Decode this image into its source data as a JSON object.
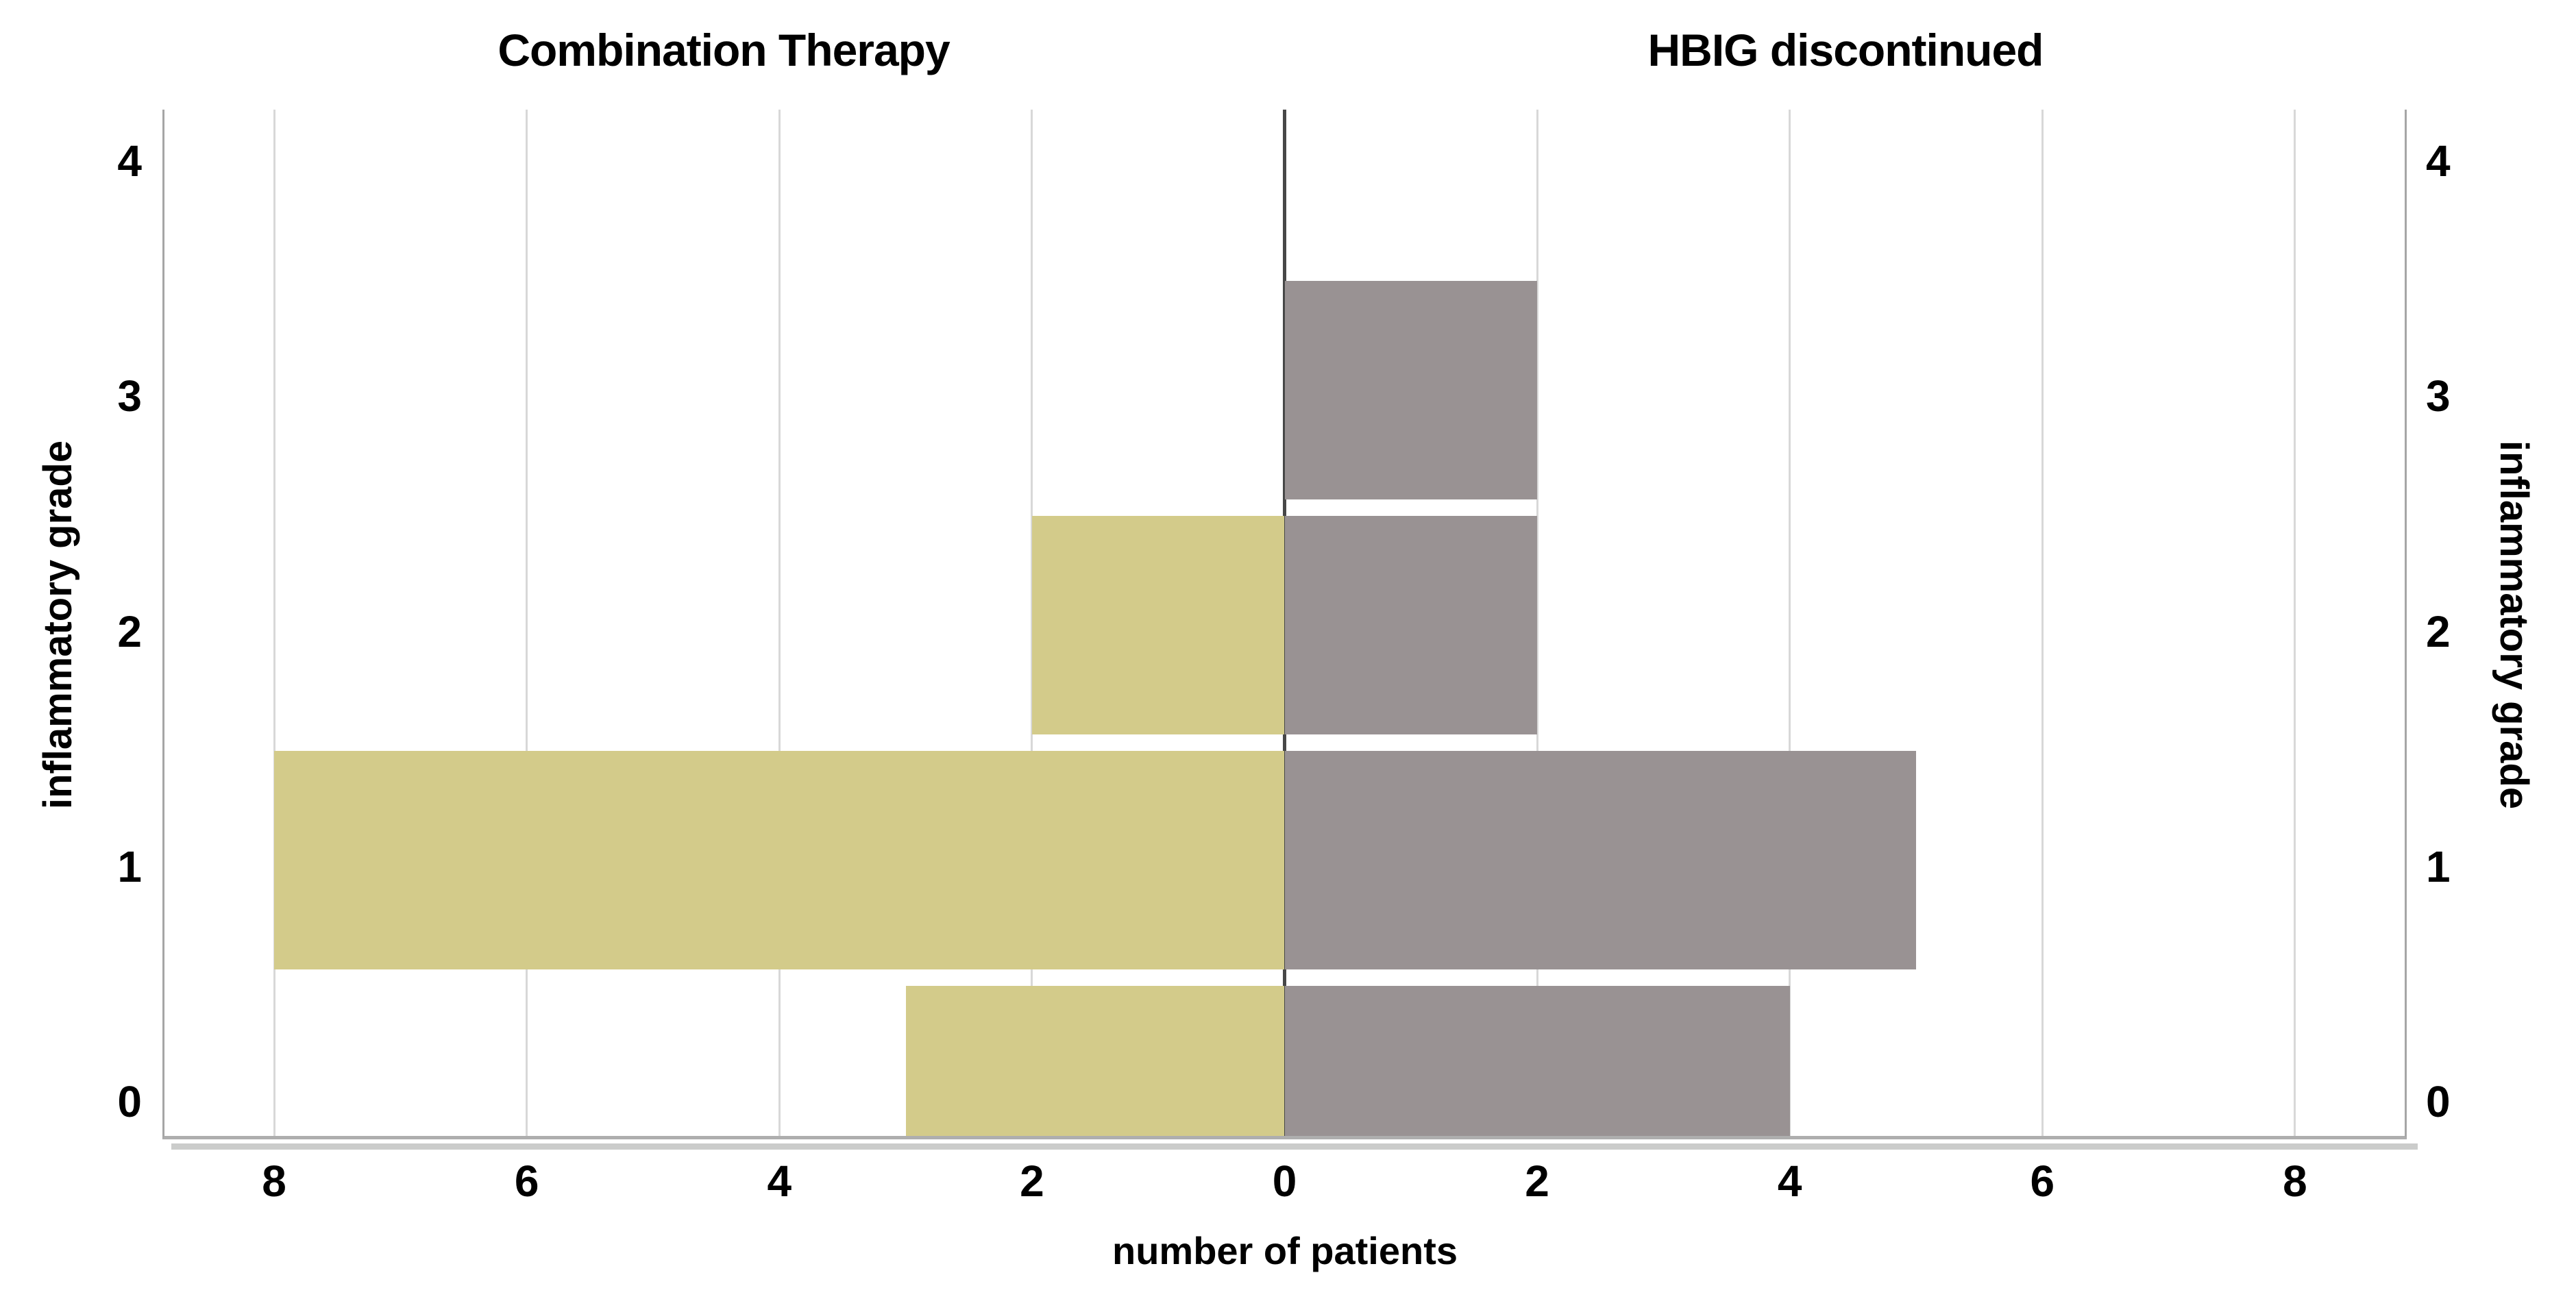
{
  "chart_data": {
    "type": "bar",
    "subtype": "population-pyramid",
    "categories": [
      0,
      1,
      2,
      3,
      4
    ],
    "category_axis_label": "inflammatory grade",
    "value_axis_label": "number of patients",
    "panels": [
      {
        "title": "Combination Therapy",
        "side": "left",
        "color": "#d3cb8a",
        "values": [
          3,
          8,
          2,
          0,
          0
        ]
      },
      {
        "title": "HBIG discontinued",
        "side": "right",
        "color": "#999293",
        "values": [
          4,
          5,
          2,
          2,
          0
        ]
      }
    ],
    "x_ticks": [
      {
        "label": "8",
        "value": -8
      },
      {
        "label": "6",
        "value": -6
      },
      {
        "label": "4",
        "value": -4
      },
      {
        "label": "2",
        "value": -2
      },
      {
        "label": "0",
        "value": 0
      },
      {
        "label": "2",
        "value": 2
      },
      {
        "label": "4",
        "value": 4
      },
      {
        "label": "6",
        "value": 6
      },
      {
        "label": "8",
        "value": 8
      }
    ],
    "y_ticks": [
      "4",
      "3",
      "2",
      "1",
      "0"
    ],
    "gridline_values": [
      2,
      4,
      6,
      8
    ],
    "value_range_per_side": [
      0,
      8.9
    ],
    "category_range": [
      -0.16,
      4.2
    ],
    "grid": true,
    "legend": false
  },
  "style": {
    "bar_left_color": "#d3cb8a",
    "bar_right_color": "#999293",
    "gridline_color": "#d8d8d8",
    "frame_color": "#a6a6a6",
    "center_line_color": "#474747",
    "axis_shadow_color": "#cbcccb",
    "background": "#ffffff",
    "text_color": "#000000"
  }
}
